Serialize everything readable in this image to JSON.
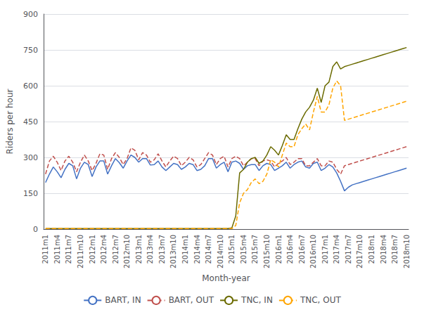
{
  "chart_data": {
    "type": "line",
    "xlabel": "Month-year",
    "ylabel": "Riders per hour",
    "categories": [
      "2011m1",
      null,
      null,
      "2011m4",
      null,
      null,
      "2011m7",
      null,
      null,
      "2011m10",
      null,
      null,
      "2012m1",
      null,
      null,
      "2012m4",
      null,
      null,
      "2012m7",
      null,
      null,
      "2012m10",
      null,
      null,
      "2013m1",
      null,
      null,
      "2013m4",
      null,
      null,
      "2013m7",
      null,
      null,
      "2013m10",
      null,
      null,
      "2014m1",
      null,
      null,
      "2014m4",
      null,
      null,
      "2014m7",
      null,
      null,
      "2014m10",
      null,
      null,
      "2015m1",
      null,
      null,
      "2015m4",
      null,
      null,
      "2015m7",
      null,
      null,
      "2015m10",
      null,
      null,
      "2016m1",
      null,
      null,
      "2016m4",
      null,
      null,
      "2016m7",
      null,
      null,
      "2016m10",
      null,
      null,
      "2017m1",
      null,
      null,
      "2017m4",
      null,
      null,
      "2017m7",
      null,
      null,
      "2017m10",
      null,
      null,
      "2018m1",
      null,
      null,
      "2018m4",
      null,
      null,
      "2018m7",
      null,
      null,
      "2018m10"
    ],
    "series": [
      {
        "name": "BART, IN",
        "color": "#4472c4",
        "line_style": "solid",
        "values": [
          195,
          230,
          260,
          240,
          215,
          250,
          275,
          265,
          210,
          255,
          280,
          270,
          220,
          260,
          285,
          285,
          230,
          265,
          295,
          278,
          255,
          285,
          310,
          300,
          280,
          295,
          295,
          268,
          270,
          285,
          260,
          245,
          260,
          275,
          270,
          250,
          260,
          275,
          270,
          245,
          250,
          265,
          295,
          295,
          255,
          270,
          280,
          240,
          280,
          285,
          275,
          250,
          265,
          270,
          270,
          245,
          265,
          275,
          270,
          245,
          255,
          265,
          280,
          255,
          270,
          280,
          285,
          260,
          255,
          275,
          280,
          245,
          255,
          270,
          260,
          235,
          200,
          160,
          175,
          185,
          190,
          195,
          200,
          205,
          210,
          215,
          220,
          225,
          230,
          235,
          240,
          245,
          250,
          255
        ]
      },
      {
        "name": "BART, OUT",
        "color": "#c0504d",
        "line_style": "dashed",
        "values": [
          230,
          285,
          305,
          280,
          245,
          285,
          305,
          280,
          240,
          280,
          310,
          285,
          245,
          275,
          315,
          310,
          250,
          295,
          320,
          300,
          270,
          295,
          340,
          330,
          290,
          320,
          310,
          280,
          290,
          315,
          285,
          260,
          285,
          305,
          295,
          265,
          280,
          300,
          290,
          260,
          270,
          295,
          320,
          310,
          270,
          295,
          305,
          260,
          295,
          305,
          295,
          265,
          280,
          295,
          295,
          265,
          285,
          290,
          285,
          260,
          275,
          285,
          300,
          270,
          280,
          295,
          295,
          265,
          265,
          280,
          295,
          265,
          265,
          285,
          280,
          250,
          230,
          265,
          270,
          275,
          280,
          285,
          290,
          295,
          300,
          305,
          310,
          315,
          320,
          325,
          330,
          335,
          340,
          345
        ]
      },
      {
        "name": "TNC, IN",
        "color": "#6b6b00",
        "line_style": "solid",
        "values": [
          2,
          2,
          2,
          2,
          2,
          2,
          2,
          2,
          2,
          2,
          2,
          2,
          2,
          2,
          2,
          2,
          2,
          2,
          2,
          2,
          2,
          2,
          2,
          2,
          2,
          2,
          2,
          2,
          2,
          2,
          2,
          2,
          2,
          2,
          2,
          2,
          2,
          2,
          2,
          2,
          2,
          2,
          2,
          2,
          2,
          2,
          2,
          2,
          5,
          55,
          235,
          250,
          280,
          295,
          300,
          275,
          285,
          310,
          345,
          330,
          310,
          350,
          395,
          375,
          375,
          420,
          460,
          490,
          510,
          540,
          590,
          530,
          600,
          615,
          680,
          700,
          670,
          680,
          685,
          690,
          695,
          700,
          705,
          710,
          715,
          720,
          725,
          730,
          735,
          740,
          745,
          750,
          755,
          760
        ]
      },
      {
        "name": "TNC, OUT",
        "color": "#ffa500",
        "line_style": "dashed",
        "values": [
          2,
          2,
          2,
          2,
          2,
          2,
          2,
          2,
          2,
          2,
          2,
          2,
          2,
          2,
          2,
          2,
          2,
          2,
          2,
          2,
          2,
          2,
          2,
          2,
          2,
          2,
          2,
          2,
          2,
          2,
          2,
          2,
          2,
          2,
          2,
          2,
          2,
          2,
          2,
          2,
          2,
          2,
          2,
          2,
          2,
          2,
          2,
          2,
          2,
          15,
          110,
          150,
          165,
          195,
          210,
          190,
          200,
          230,
          290,
          280,
          260,
          310,
          360,
          345,
          345,
          395,
          420,
          440,
          415,
          490,
          555,
          490,
          490,
          520,
          590,
          620,
          600,
          455,
          460,
          465,
          470,
          475,
          480,
          485,
          490,
          495,
          500,
          505,
          510,
          515,
          520,
          525,
          530,
          535
        ]
      }
    ],
    "ylim": [
      0,
      900
    ],
    "yticks": [
      0,
      150,
      300,
      450,
      600,
      750,
      900
    ],
    "grid": true,
    "legend": "bottom"
  }
}
